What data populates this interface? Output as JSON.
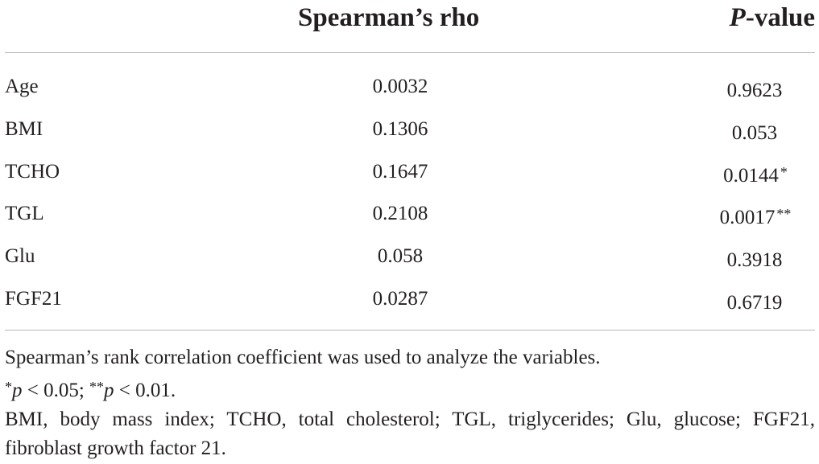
{
  "table": {
    "headers": {
      "variable": "",
      "rho": "Spearman’s rho",
      "p_italic": "P",
      "p_rest": "-value"
    },
    "rows": [
      {
        "variable": "Age",
        "rho": "0.0032",
        "p": "0.9623",
        "stars": ""
      },
      {
        "variable": "BMI",
        "rho": "0.1306",
        "p": "0.053",
        "stars": ""
      },
      {
        "variable": "TCHO",
        "rho": "0.1647",
        "p": "0.0144",
        "stars": "*"
      },
      {
        "variable": "TGL",
        "rho": "0.2108",
        "p": "0.0017",
        "stars": "**"
      },
      {
        "variable": "Glu",
        "rho": "0.058",
        "p": "0.3918",
        "stars": ""
      },
      {
        "variable": "FGF21",
        "rho": "0.0287",
        "p": "0.6719",
        "stars": ""
      }
    ]
  },
  "footnotes": {
    "method": "Spearman’s rank correlation coefficient was used to analyze the variables.",
    "sig": {
      "star1": "*",
      "p1": "p",
      "rest1": " < 0.05; ",
      "star2": "**",
      "p2": "p",
      "rest2": " < 0.01."
    },
    "abbreviations": "BMI, body mass index; TCHO, total cholesterol; TGL, triglycerides; Glu, glucose; FGF21, fibroblast growth factor 21."
  }
}
